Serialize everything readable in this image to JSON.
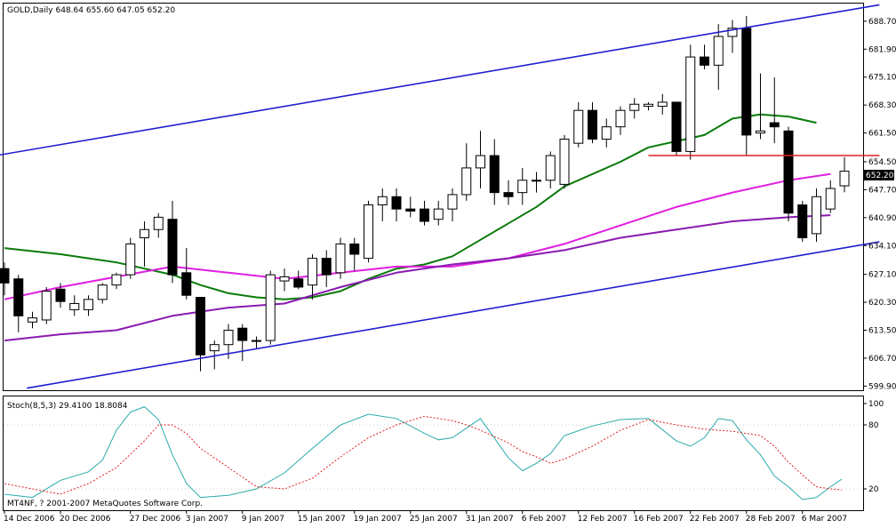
{
  "main_title": "GOLD,Daily  648.64 655.60 647.05 652.20",
  "stoch_title": "Stoch(8,5,3) 29.4100 18.8084",
  "copyright": "MT4NF, ? 2001-2007 MetaQuotes Software Corp.",
  "price_tag": "652.20",
  "chart_data": [
    {
      "type": "candlestick",
      "symbol": "GOLD",
      "timeframe": "Daily",
      "ohlc_header": {
        "open": 648.64,
        "high": 655.6,
        "low": 647.05,
        "close": 652.2
      },
      "ylim": [
        598.9,
        693.0
      ],
      "y_ticks": [
        599.9,
        606.7,
        613.5,
        620.3,
        627.1,
        634.1,
        640.9,
        647.7,
        654.5,
        661.5,
        668.3,
        675.1,
        681.9,
        688.7
      ],
      "y_tick_labels": [
        "599.90",
        "606.70",
        "613.50",
        "620.30",
        "627.10",
        "634.10",
        "640.90",
        "647.70",
        "654.50",
        "661.50",
        "668.30",
        "675.10",
        "681.90",
        "688.70"
      ],
      "x_tick_labels": [
        "14 Dec 2006",
        "20 Dec 2006",
        "27 Dec 2006",
        "3 Jan 2007",
        "9 Jan 2007",
        "15 Jan 2007",
        "19 Jan 2007",
        "25 Jan 2007",
        "31 Jan 2007",
        "6 Feb 2007",
        "12 Feb 2007",
        "16 Feb 2007",
        "22 Feb 2007",
        "28 Feb 2007",
        "6 Mar 2007"
      ],
      "x_tick_index": [
        0,
        4,
        9,
        13,
        17,
        21,
        25,
        29,
        33,
        37,
        41,
        45,
        49,
        53,
        57
      ],
      "candles": [
        {
          "o": 628.5,
          "h": 630.0,
          "l": 622.0,
          "c": 625.0
        },
        {
          "o": 626.0,
          "h": 627.0,
          "l": 613.0,
          "c": 617.0
        },
        {
          "o": 615.5,
          "h": 618.0,
          "l": 614.0,
          "c": 616.5
        },
        {
          "o": 616.0,
          "h": 624.0,
          "l": 615.0,
          "c": 623.0
        },
        {
          "o": 623.5,
          "h": 625.0,
          "l": 619.0,
          "c": 620.5
        },
        {
          "o": 618.5,
          "h": 622.0,
          "l": 617.0,
          "c": 620.0
        },
        {
          "o": 618.5,
          "h": 622.0,
          "l": 617.0,
          "c": 621.0
        },
        {
          "o": 621.0,
          "h": 625.0,
          "l": 620.0,
          "c": 624.5
        },
        {
          "o": 624.5,
          "h": 627.5,
          "l": 623.5,
          "c": 627.0
        },
        {
          "o": 627.0,
          "h": 636.0,
          "l": 626.0,
          "c": 634.5
        },
        {
          "o": 636.0,
          "h": 640.0,
          "l": 629.0,
          "c": 638.0
        },
        {
          "o": 638.0,
          "h": 642.0,
          "l": 636.0,
          "c": 641.0
        },
        {
          "o": 640.5,
          "h": 645.0,
          "l": 625.0,
          "c": 627.0
        },
        {
          "o": 627.5,
          "h": 633.5,
          "l": 621.0,
          "c": 622.0
        },
        {
          "o": 621.5,
          "h": 621.5,
          "l": 603.5,
          "c": 607.5
        },
        {
          "o": 608.5,
          "h": 611.0,
          "l": 604.0,
          "c": 610.0
        },
        {
          "o": 610.0,
          "h": 615.0,
          "l": 606.5,
          "c": 613.5
        },
        {
          "o": 614.0,
          "h": 615.0,
          "l": 606.0,
          "c": 611.0
        },
        {
          "o": 611.0,
          "h": 612.0,
          "l": 609.0,
          "c": 611.0
        },
        {
          "o": 611.0,
          "h": 628.0,
          "l": 610.0,
          "c": 627.0
        },
        {
          "o": 625.5,
          "h": 628.5,
          "l": 623.0,
          "c": 626.5
        },
        {
          "o": 626.0,
          "h": 628.0,
          "l": 623.5,
          "c": 624.0
        },
        {
          "o": 624.5,
          "h": 632.0,
          "l": 621.0,
          "c": 631.0
        },
        {
          "o": 631.0,
          "h": 633.0,
          "l": 624.0,
          "c": 627.0
        },
        {
          "o": 627.5,
          "h": 636.0,
          "l": 626.0,
          "c": 634.5
        },
        {
          "o": 634.5,
          "h": 636.0,
          "l": 628.0,
          "c": 632.0
        },
        {
          "o": 631.0,
          "h": 645.0,
          "l": 630.0,
          "c": 644.0
        },
        {
          "o": 644.0,
          "h": 648.0,
          "l": 640.0,
          "c": 646.0
        },
        {
          "o": 646.0,
          "h": 648.0,
          "l": 640.0,
          "c": 643.0
        },
        {
          "o": 643.0,
          "h": 646.0,
          "l": 641.0,
          "c": 642.5
        },
        {
          "o": 643.0,
          "h": 645.0,
          "l": 639.0,
          "c": 640.0
        },
        {
          "o": 640.5,
          "h": 645.0,
          "l": 639.0,
          "c": 643.0
        },
        {
          "o": 643.0,
          "h": 648.0,
          "l": 640.0,
          "c": 646.5
        },
        {
          "o": 646.5,
          "h": 659.0,
          "l": 645.0,
          "c": 653.0
        },
        {
          "o": 653.0,
          "h": 662.0,
          "l": 648.0,
          "c": 656.0
        },
        {
          "o": 656.0,
          "h": 660.0,
          "l": 644.0,
          "c": 647.0
        },
        {
          "o": 647.0,
          "h": 650.0,
          "l": 644.0,
          "c": 646.0
        },
        {
          "o": 647.0,
          "h": 653.0,
          "l": 644.0,
          "c": 650.0
        },
        {
          "o": 650.0,
          "h": 652.0,
          "l": 647.0,
          "c": 650.0
        },
        {
          "o": 650.0,
          "h": 657.0,
          "l": 648.0,
          "c": 656.0
        },
        {
          "o": 649.0,
          "h": 661.0,
          "l": 648.0,
          "c": 660.0
        },
        {
          "o": 659.0,
          "h": 669.0,
          "l": 658.0,
          "c": 667.0
        },
        {
          "o": 667.0,
          "h": 669.0,
          "l": 659.0,
          "c": 660.0
        },
        {
          "o": 660.0,
          "h": 665.0,
          "l": 658.0,
          "c": 663.0
        },
        {
          "o": 663.0,
          "h": 668.0,
          "l": 661.0,
          "c": 667.0
        },
        {
          "o": 667.0,
          "h": 670.0,
          "l": 665.0,
          "c": 668.5
        },
        {
          "o": 668.0,
          "h": 669.0,
          "l": 667.0,
          "c": 668.5
        },
        {
          "o": 668.0,
          "h": 671.0,
          "l": 666.0,
          "c": 669.0
        },
        {
          "o": 669.0,
          "h": 669.0,
          "l": 656.0,
          "c": 657.0
        },
        {
          "o": 657.0,
          "h": 683.0,
          "l": 655.0,
          "c": 680.0
        },
        {
          "o": 680.0,
          "h": 683.0,
          "l": 677.0,
          "c": 678.0
        },
        {
          "o": 678.0,
          "h": 688.0,
          "l": 672.0,
          "c": 685.0
        },
        {
          "o": 685.0,
          "h": 689.0,
          "l": 681.0,
          "c": 687.0
        },
        {
          "o": 687.0,
          "h": 690.0,
          "l": 656.0,
          "c": 661.0
        },
        {
          "o": 661.5,
          "h": 676.0,
          "l": 660.0,
          "c": 662.0
        },
        {
          "o": 664.0,
          "h": 675.0,
          "l": 659.0,
          "c": 663.0
        },
        {
          "o": 662.0,
          "h": 663.0,
          "l": 640.0,
          "c": 642.0
        },
        {
          "o": 644.0,
          "h": 645.0,
          "l": 635.0,
          "c": 636.0
        },
        {
          "o": 637.0,
          "h": 648.0,
          "l": 635.0,
          "c": 646.0
        },
        {
          "o": 643.0,
          "h": 650.0,
          "l": 642.0,
          "c": 648.0
        },
        {
          "o": 648.64,
          "h": 655.6,
          "l": 647.05,
          "c": 652.2
        }
      ],
      "indicators": [
        {
          "name": "MA green",
          "color": "#0a7a0a",
          "points": [
            [
              0,
              633.5
            ],
            [
              4,
              632.0
            ],
            [
              8,
              630.0
            ],
            [
              12,
              627.0
            ],
            [
              14,
              624.5
            ],
            [
              16,
              622.5
            ],
            [
              18,
              621.5
            ],
            [
              20,
              621.0
            ],
            [
              22,
              621.5
            ],
            [
              24,
              623.0
            ],
            [
              26,
              626.0
            ],
            [
              28,
              628.5
            ],
            [
              30,
              629.5
            ],
            [
              32,
              631.5
            ],
            [
              34,
              635.5
            ],
            [
              36,
              639.5
            ],
            [
              38,
              643.5
            ],
            [
              40,
              648.5
            ],
            [
              42,
              651.5
            ],
            [
              44,
              654.5
            ],
            [
              46,
              658.0
            ],
            [
              48,
              659.5
            ],
            [
              50,
              661.0
            ],
            [
              52,
              665.0
            ],
            [
              54,
              666.0
            ],
            [
              56,
              665.5
            ],
            [
              58,
              664.0
            ]
          ]
        },
        {
          "name": "MA magenta",
          "color": "#e01ee0",
          "points": [
            [
              0,
              621.0
            ],
            [
              4,
              624.0
            ],
            [
              8,
              626.5
            ],
            [
              12,
              629.0
            ],
            [
              16,
              627.5
            ],
            [
              20,
              626.0
            ],
            [
              24,
              627.5
            ],
            [
              28,
              629.0
            ],
            [
              32,
              629.0
            ],
            [
              36,
              631.0
            ],
            [
              40,
              634.5
            ],
            [
              44,
              639.0
            ],
            [
              48,
              643.5
            ],
            [
              52,
              647.0
            ],
            [
              56,
              650.0
            ],
            [
              59,
              651.5
            ]
          ]
        },
        {
          "name": "MA purple",
          "color": "#8a1ab0",
          "points": [
            [
              0,
              611.0
            ],
            [
              4,
              612.5
            ],
            [
              8,
              613.5
            ],
            [
              12,
              617.0
            ],
            [
              16,
              619.0
            ],
            [
              20,
              620.0
            ],
            [
              24,
              624.0
            ],
            [
              28,
              627.5
            ],
            [
              32,
              629.5
            ],
            [
              36,
              631.0
            ],
            [
              40,
              633.0
            ],
            [
              44,
              636.0
            ],
            [
              48,
              638.0
            ],
            [
              52,
              640.0
            ],
            [
              56,
              641.0
            ],
            [
              59,
              641.5
            ]
          ]
        },
        {
          "name": "Channel upper",
          "color": "#1f1fcf",
          "points": [
            [
              -0.6,
              656.0
            ],
            [
              62.5,
              692.7
            ]
          ]
        },
        {
          "name": "Channel lower",
          "color": "#1f1fcf",
          "points": [
            [
              1.6,
              599.4
            ],
            [
              62.5,
              635.0
            ]
          ]
        },
        {
          "name": "Horizontal level",
          "color": "#e02020",
          "points": [
            [
              46,
              656.0
            ],
            [
              62.5,
              656.0
            ]
          ]
        }
      ]
    },
    {
      "type": "line",
      "title": "Stoch(8,5,3) 29.4100 18.8084",
      "ylim": [
        0,
        100
      ],
      "y_ticks": [
        20,
        80,
        100
      ],
      "y_tick_labels": [
        "20",
        "80",
        "100"
      ],
      "series": [
        {
          "name": "main",
          "color": "#2aaaaa",
          "points": [
            [
              0,
              15
            ],
            [
              2,
              12
            ],
            [
              4,
              28
            ],
            [
              6,
              36
            ],
            [
              7,
              47
            ],
            [
              8,
              75
            ],
            [
              9,
              92
            ],
            [
              10,
              97
            ],
            [
              11,
              85
            ],
            [
              12,
              52
            ],
            [
              13,
              25
            ],
            [
              14,
              12
            ],
            [
              16,
              14
            ],
            [
              18,
              20
            ],
            [
              20,
              35
            ],
            [
              22,
              58
            ],
            [
              24,
              80
            ],
            [
              26,
              90
            ],
            [
              28,
              86
            ],
            [
              30,
              72
            ],
            [
              31,
              66
            ],
            [
              32,
              68
            ],
            [
              34,
              86
            ],
            [
              36,
              49
            ],
            [
              37,
              37
            ],
            [
              38,
              44
            ],
            [
              39,
              53
            ],
            [
              40,
              70
            ],
            [
              42,
              79
            ],
            [
              44,
              85
            ],
            [
              46,
              86
            ],
            [
              48,
              65
            ],
            [
              49,
              60
            ],
            [
              50,
              68
            ],
            [
              51,
              86
            ],
            [
              52,
              84
            ],
            [
              53,
              66
            ],
            [
              54,
              52
            ],
            [
              55,
              32
            ],
            [
              56,
              22
            ],
            [
              57,
              10
            ],
            [
              58,
              12
            ],
            [
              59,
              22
            ],
            [
              59.8,
              29
            ]
          ]
        },
        {
          "name": "signal",
          "color": "#e02020",
          "dashed": true,
          "points": [
            [
              0,
              25
            ],
            [
              2,
              20
            ],
            [
              4,
              15
            ],
            [
              6,
              25
            ],
            [
              8,
              40
            ],
            [
              10,
              65
            ],
            [
              11,
              80
            ],
            [
              12,
              80
            ],
            [
              13,
              72
            ],
            [
              14,
              58
            ],
            [
              16,
              40
            ],
            [
              18,
              22
            ],
            [
              20,
              20
            ],
            [
              22,
              30
            ],
            [
              24,
              50
            ],
            [
              26,
              68
            ],
            [
              28,
              80
            ],
            [
              30,
              88
            ],
            [
              32,
              84
            ],
            [
              33,
              80
            ],
            [
              34,
              75
            ],
            [
              36,
              63
            ],
            [
              37,
              55
            ],
            [
              38,
              50
            ],
            [
              39,
              44
            ],
            [
              40,
              48
            ],
            [
              42,
              60
            ],
            [
              44,
              75
            ],
            [
              46,
              85
            ],
            [
              48,
              80
            ],
            [
              50,
              76
            ],
            [
              52,
              74
            ],
            [
              54,
              70
            ],
            [
              55,
              60
            ],
            [
              56,
              45
            ],
            [
              57,
              33
            ],
            [
              58,
              22
            ],
            [
              59,
              20
            ],
            [
              59.8,
              19
            ]
          ]
        }
      ]
    }
  ]
}
